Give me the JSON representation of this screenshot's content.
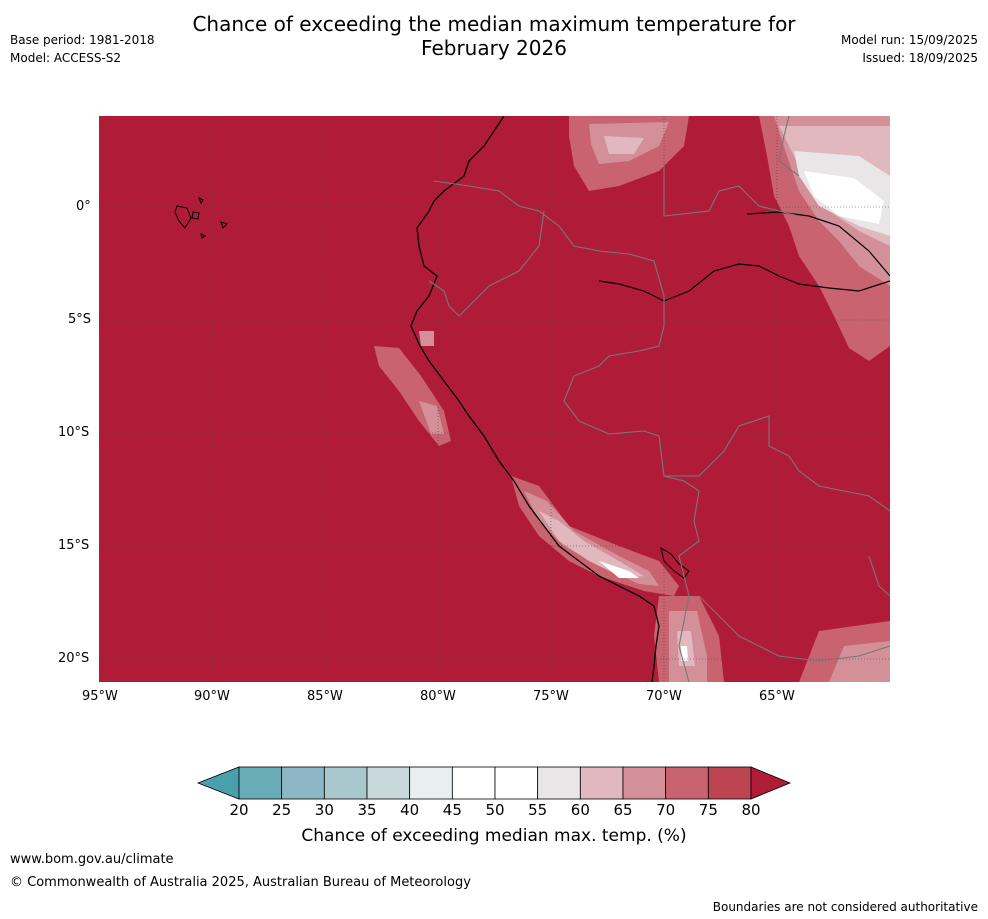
{
  "header": {
    "title_line1": "Chance of exceeding the median maximum temperature for",
    "title_line2": "February 2026",
    "base_period": "Base period: 1981-2018",
    "model": "Model: ACCESS-S2",
    "model_run": "Model run: 15/09/2025",
    "issued": "Issued: 18/09/2025"
  },
  "map": {
    "lat_ticks": [
      "0°",
      "5°S",
      "10°S",
      "15°S",
      "20°S"
    ],
    "lon_ticks": [
      "95°W",
      "90°W",
      "85°W",
      "80°W",
      "75°W",
      "70°W",
      "65°W"
    ],
    "dominant_category": "above 80",
    "background_color": "#b01c38"
  },
  "colorbar": {
    "title": "Chance of exceeding median max. temp. (%)",
    "labels": [
      "20",
      "25",
      "30",
      "35",
      "40",
      "45",
      "50",
      "55",
      "60",
      "65",
      "70",
      "75",
      "80"
    ],
    "colors": [
      "#6aabb8",
      "#8bb8c4",
      "#a9c8ce",
      "#c8d9dc",
      "#e9eef0",
      "#ffffff",
      "#ffffff",
      "#e8e6e7",
      "#e0b8bd",
      "#d39099",
      "#c8636f",
      "#bd4552"
    ],
    "low_extend_color": "#4a9fad",
    "high_extend_color": "#b01c38"
  },
  "footer": {
    "url": "www.bom.gov.au/climate",
    "copyright": "© Commonwealth of Australia 2025, Australian Bureau of Meteorology",
    "disclaimer": "Boundaries are not considered authoritative"
  }
}
